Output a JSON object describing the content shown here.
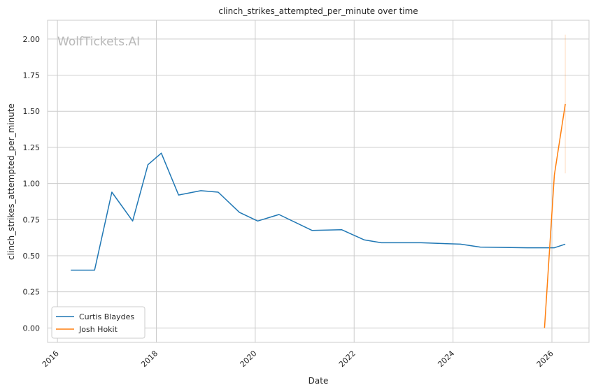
{
  "chart_data": {
    "type": "line",
    "title": "clinch_strikes_attempted_per_minute over time",
    "xlabel": "Date",
    "ylabel": "clinch_strikes_attempted_per_minute",
    "watermark": "WolfTickets.AI",
    "x_ticks": [
      "2016",
      "2018",
      "2020",
      "2022",
      "2024",
      "2026"
    ],
    "y_ticks": [
      "0.00",
      "0.25",
      "0.50",
      "0.75",
      "1.00",
      "1.25",
      "1.50",
      "1.75",
      "2.00"
    ],
    "xlim": [
      2015.8,
      2026.75
    ],
    "ylim": [
      -0.1,
      2.13
    ],
    "grid": true,
    "legend_position": "lower-left",
    "colors": {
      "curtis": "#1f77b4",
      "josh": "#ff7f0e"
    },
    "series": [
      {
        "name": "Curtis Blaydes",
        "color": "#1f77b4",
        "points": [
          [
            2016.27,
            0.4
          ],
          [
            2016.75,
            0.4
          ],
          [
            2017.1,
            0.94
          ],
          [
            2017.52,
            0.74
          ],
          [
            2017.83,
            1.13
          ],
          [
            2018.1,
            1.21
          ],
          [
            2018.45,
            0.92
          ],
          [
            2018.9,
            0.95
          ],
          [
            2019.25,
            0.94
          ],
          [
            2019.68,
            0.8
          ],
          [
            2020.05,
            0.74
          ],
          [
            2020.48,
            0.785
          ],
          [
            2021.15,
            0.675
          ],
          [
            2021.75,
            0.68
          ],
          [
            2022.2,
            0.61
          ],
          [
            2022.55,
            0.59
          ],
          [
            2023.35,
            0.59
          ],
          [
            2024.15,
            0.58
          ],
          [
            2024.55,
            0.56
          ],
          [
            2025.5,
            0.555
          ],
          [
            2026.05,
            0.555
          ],
          [
            2026.27,
            0.58
          ]
        ]
      },
      {
        "name": "Josh Hokit",
        "color": "#ff7f0e",
        "points": [
          [
            2025.85,
            0.0
          ],
          [
            2026.05,
            1.06
          ],
          [
            2026.27,
            1.55
          ]
        ],
        "band": [
          [
            2026.27,
            1.07,
            2.03
          ]
        ]
      }
    ]
  }
}
